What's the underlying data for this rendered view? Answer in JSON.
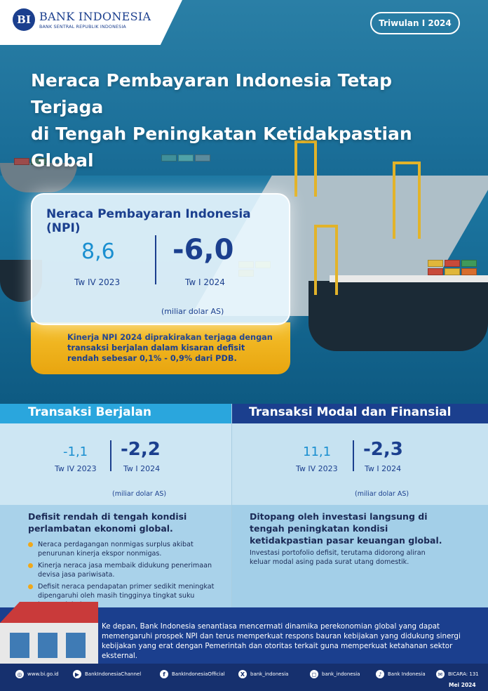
{
  "brand": {
    "name": "BANK INDONESIA",
    "tagline": "BANK SENTRAL REPUBLIK INDONESIA",
    "logo_mark": "BI"
  },
  "period": "Triwulan I 2024",
  "title_line1": "Neraca Pembayaran Indonesia Tetap Terjaga",
  "title_line2": "di Tengah Peningkatan Ketidakpastian Global",
  "npi": {
    "title": "Neraca Pembayaran Indonesia (NPI)",
    "prev_value": "8,6",
    "prev_label": "Tw IV 2023",
    "curr_value": "-6,0",
    "curr_label": "Tw I 2024",
    "unit": "(miliar dolar AS)",
    "note": "Kinerja NPI 2024 diprakirakan terjaga dengan transaksi berjalan dalam kisaran defisit rendah sebesar 0,1% - 0,9% dari PDB."
  },
  "current_account": {
    "title": "Transaksi Berjalan",
    "prev_value": "-1,1",
    "prev_label": "Tw IV 2023",
    "curr_value": "-2,2",
    "curr_label": "Tw I 2024",
    "unit": "(miliar dolar AS)",
    "desc_title": "Defisit rendah di tengah kondisi perlambatan ekonomi global.",
    "bullets": [
      "Neraca perdagangan nonmigas surplus akibat penurunan kinerja ekspor nonmigas.",
      "Kinerja neraca jasa membaik didukung penerimaan devisa jasa pariwisata.",
      "Defisit neraca pendapatan primer sedikit meningkat dipengaruhi oleh masih tingginya tingkat suku bunga global."
    ]
  },
  "capital_account": {
    "title": "Transaksi Modal dan Finansial",
    "prev_value": "11,1",
    "prev_label": "Tw IV 2023",
    "curr_value": "-2,3",
    "curr_label": "Tw I 2024",
    "unit": "(miliar dolar AS)",
    "desc_title": "Ditopang oleh investasi langsung di tengah peningkatan kondisi ketidakpastian pasar keuangan global.",
    "desc_text": "Investasi portofolio defisit, terutama didorong aliran keluar modal asing pada surat utang domestik."
  },
  "closing": "Ke depan, Bank Indonesia senantiasa mencermati dinamika perekonomian global yang dapat memengaruhi prospek NPI dan terus memperkuat respons bauran kebijakan yang didukung sinergi kebijakan yang erat dengan Pemerintah dan otoritas terkait guna memperkuat ketahanan sektor eksternal.",
  "footer": {
    "items": [
      {
        "icon": "globe-icon",
        "label": "www.bi.go.id"
      },
      {
        "icon": "youtube-icon",
        "label": "BankIndonesiaChannel"
      },
      {
        "icon": "facebook-icon",
        "label": "BankIndonesiaOfficial"
      },
      {
        "icon": "x-icon",
        "label": "bank_indonesia"
      },
      {
        "icon": "instagram-icon",
        "label": "bank_indonesia"
      },
      {
        "icon": "tiktok-icon",
        "label": "Bank Indonesia"
      },
      {
        "icon": "chat-icon",
        "label": "BICARA: 131"
      }
    ],
    "date": "Mei 2024"
  },
  "colors": {
    "navy": "#1b3f8e",
    "accent_blue": "#1a8fd0",
    "section_blue": "#2aa6dd",
    "gold": "#f5c02c"
  }
}
